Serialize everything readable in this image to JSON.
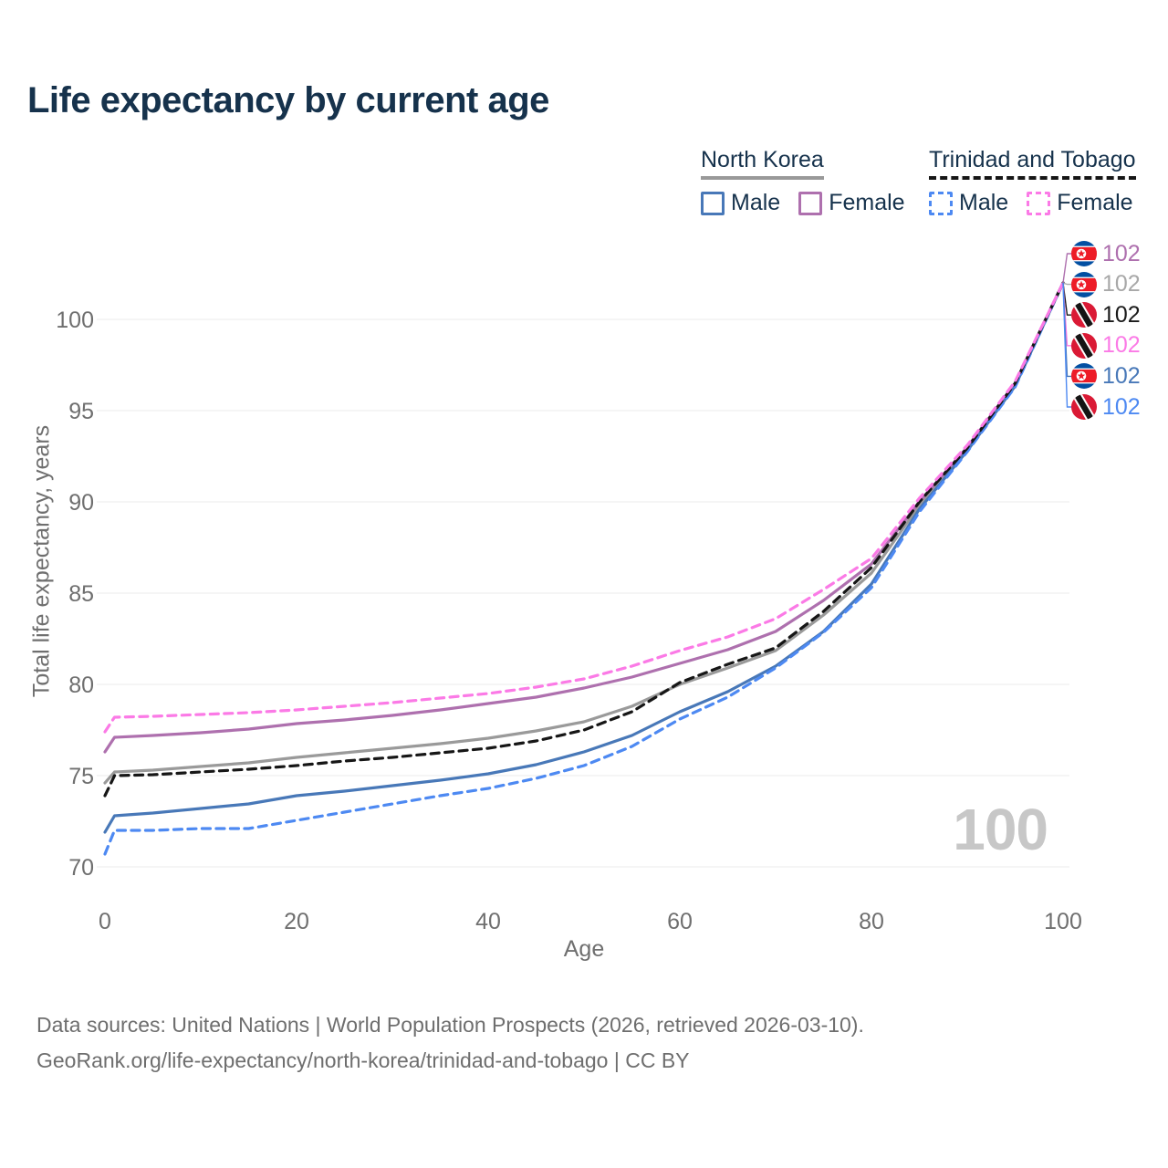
{
  "title": "Life expectancy by current age",
  "age_counter": "100",
  "legend": {
    "groups": [
      {
        "name": "North Korea",
        "line_style": "solid",
        "underline_color": "#999999",
        "items": [
          {
            "label": "Male",
            "color": "#4878b8"
          },
          {
            "label": "Female",
            "color": "#ae70ae"
          }
        ]
      },
      {
        "name": "Trinidad and Tobago",
        "line_style": "dashed",
        "underline_color": "#161616",
        "items": [
          {
            "label": "Male",
            "color": "#4d89f2"
          },
          {
            "label": "Female",
            "color": "#fb7ae6"
          }
        ]
      }
    ]
  },
  "end_labels": [
    {
      "flag": "north-korea",
      "series": "North Korea Female",
      "value": "102",
      "color": "#ae70ae"
    },
    {
      "flag": "north-korea",
      "series": "North Korea",
      "value": "102",
      "color": "#a8a8a8"
    },
    {
      "flag": "trinidad-and-tobago",
      "series": "Trinidad and Tobago",
      "value": "102",
      "color": "#1a1a1a"
    },
    {
      "flag": "trinidad-and-tobago",
      "series": "Trinidad and Tobago Female",
      "value": "102",
      "color": "#fb7ae6"
    },
    {
      "flag": "north-korea",
      "series": "North Korea Male",
      "value": "102",
      "color": "#4878b8"
    },
    {
      "flag": "trinidad-and-tobago",
      "series": "Trinidad and Tobago Male",
      "value": "102",
      "color": "#4d89f2"
    }
  ],
  "chart_data": {
    "type": "line",
    "title": "Life expectancy by current age",
    "xlabel": "Age",
    "ylabel": "Total life expectancy, years",
    "x_ticks": [
      0,
      20,
      40,
      60,
      80,
      100
    ],
    "y_ticks": [
      70,
      75,
      80,
      85,
      90,
      95,
      100
    ],
    "xlim": [
      0,
      100
    ],
    "ylim": [
      70,
      102.5
    ],
    "grid": "horizontal",
    "legend_position": "top-right",
    "x": [
      0,
      1,
      5,
      10,
      15,
      20,
      25,
      30,
      35,
      40,
      45,
      50,
      55,
      60,
      65,
      70,
      75,
      80,
      85,
      90,
      95,
      100
    ],
    "series": [
      {
        "name": "North Korea",
        "style": "solid",
        "color": "#9a9a9a",
        "values": [
          74.6,
          75.2,
          75.3,
          75.5,
          75.7,
          76.0,
          76.25,
          76.5,
          76.75,
          77.05,
          77.45,
          77.95,
          78.8,
          80.0,
          80.9,
          81.85,
          83.8,
          86.1,
          89.8,
          92.9,
          96.45,
          102
        ]
      },
      {
        "name": "North Korea Female",
        "style": "solid",
        "color": "#ae70ae",
        "values": [
          76.3,
          77.1,
          77.2,
          77.35,
          77.55,
          77.85,
          78.05,
          78.3,
          78.6,
          78.95,
          79.3,
          79.8,
          80.4,
          81.15,
          81.9,
          82.9,
          84.6,
          86.6,
          90.0,
          93.0,
          96.5,
          102
        ]
      },
      {
        "name": "North Korea Male",
        "style": "solid",
        "color": "#4878b8",
        "values": [
          71.9,
          72.8,
          72.95,
          73.2,
          73.45,
          73.9,
          74.15,
          74.45,
          74.75,
          75.1,
          75.6,
          76.3,
          77.2,
          78.5,
          79.6,
          81.0,
          82.9,
          85.5,
          89.6,
          92.8,
          96.35,
          102
        ]
      },
      {
        "name": "Trinidad and Tobago Male",
        "style": "dashed",
        "color": "#4d89f2",
        "values": [
          70.7,
          72.0,
          72.0,
          72.1,
          72.1,
          72.55,
          73.0,
          73.45,
          73.9,
          74.3,
          74.85,
          75.55,
          76.6,
          78.1,
          79.3,
          80.9,
          82.85,
          85.3,
          89.45,
          92.75,
          96.3,
          102
        ]
      },
      {
        "name": "Trinidad and Tobago",
        "style": "dashed",
        "color": "#161616",
        "values": [
          73.9,
          75.0,
          75.05,
          75.2,
          75.35,
          75.55,
          75.8,
          76.0,
          76.25,
          76.5,
          76.9,
          77.5,
          78.5,
          80.1,
          81.1,
          82.0,
          84.0,
          86.4,
          90.0,
          92.95,
          96.5,
          102
        ]
      },
      {
        "name": "Trinidad and Tobago Female",
        "style": "dashed",
        "color": "#fb7ae6",
        "values": [
          77.4,
          78.2,
          78.25,
          78.35,
          78.45,
          78.6,
          78.8,
          79.0,
          79.25,
          79.5,
          79.85,
          80.3,
          81.0,
          81.85,
          82.6,
          83.6,
          85.2,
          86.9,
          90.2,
          93.1,
          96.6,
          102
        ]
      }
    ]
  },
  "footer": {
    "line1": "Data sources: United Nations | World Population Prospects (2026, retrieved 2026-03-10).",
    "line2": "GeoRank.org/life-expectancy/north-korea/trinidad-and-tobago | CC BY"
  }
}
